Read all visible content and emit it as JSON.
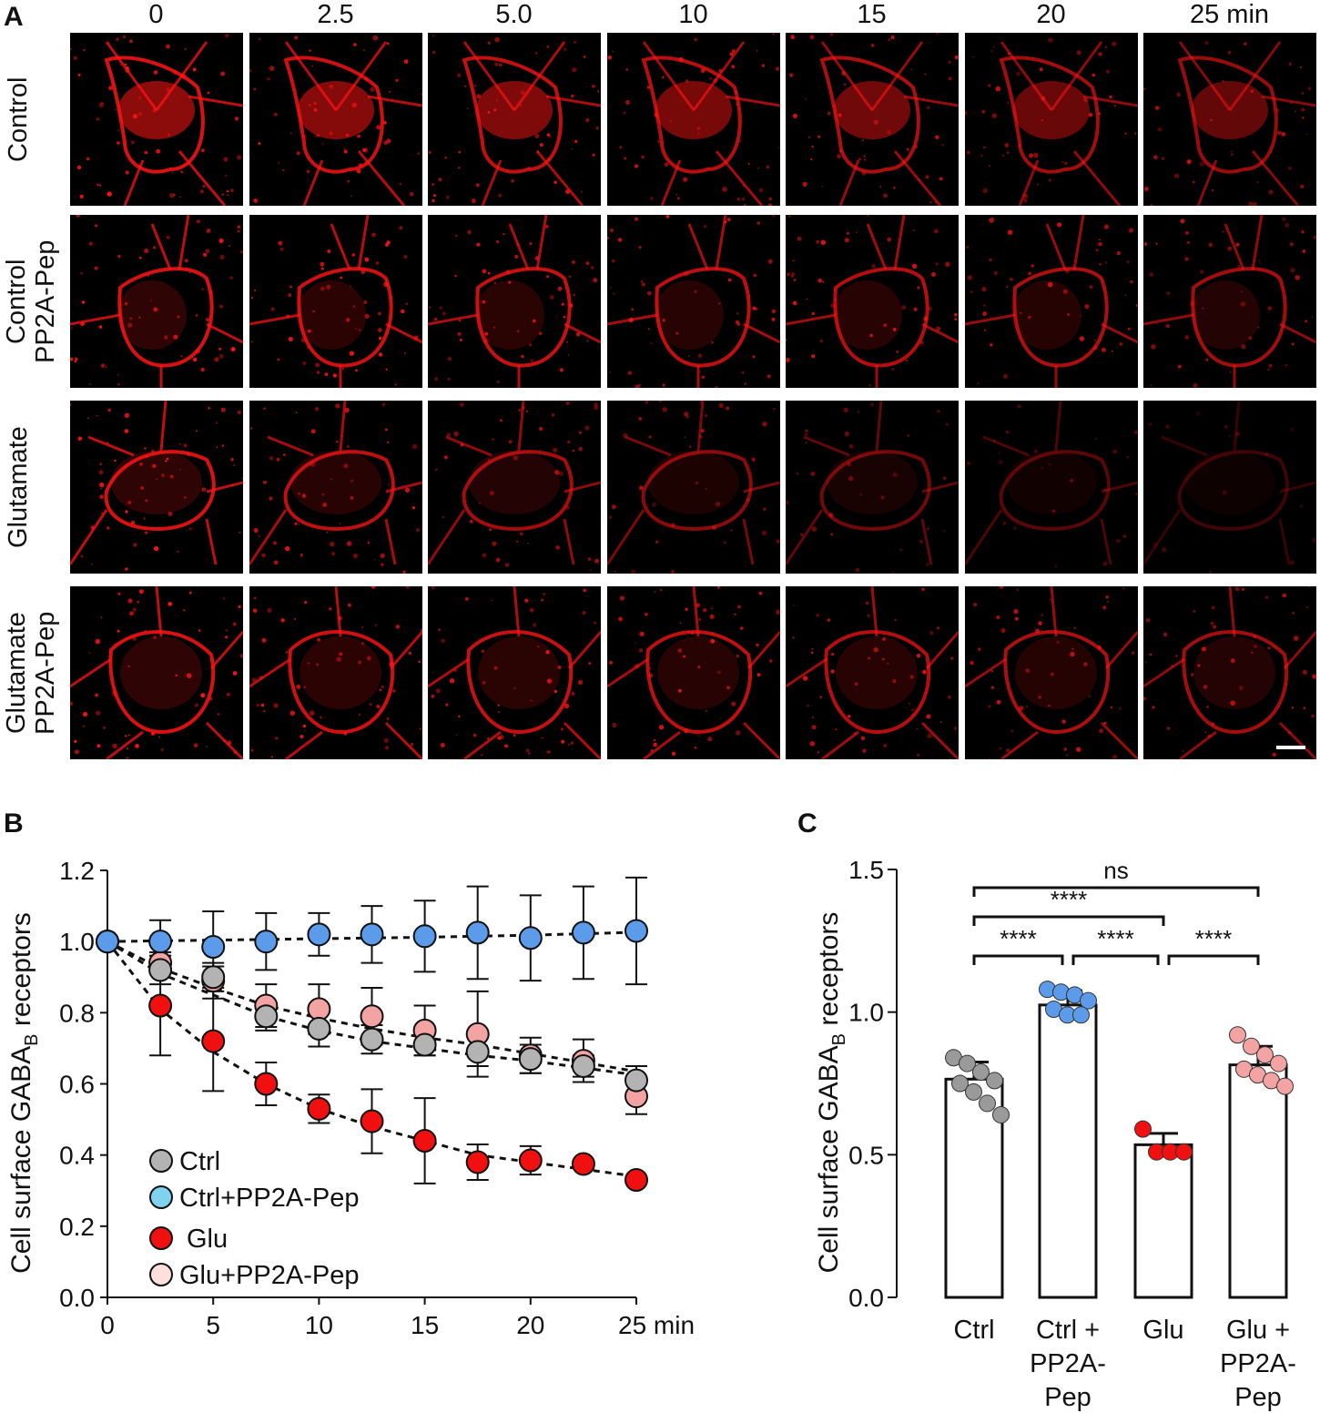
{
  "panel_a": {
    "letter": "A",
    "time_labels": [
      "0",
      "2.5",
      "5.0",
      "10",
      "15",
      "20",
      "25 min"
    ],
    "row_labels": [
      [
        "Control"
      ],
      [
        "Control",
        "PP2A-Pep"
      ],
      [
        "Glutamate"
      ],
      [
        "Glutamate",
        "PP2A-Pep"
      ]
    ],
    "image_color": "#ff1414",
    "scale_bar_color": "#ffffff"
  },
  "panel_b": {
    "letter": "B"
  },
  "panel_c": {
    "letter": "C"
  },
  "chart_data": [
    {
      "type": "scatter",
      "panel": "B",
      "ylabel_main": "Cell surface GABA",
      "ylabel_sub": "B",
      "ylabel_end": " receptors",
      "xlabel": "",
      "x_unit": "min",
      "xlim": [
        0,
        25
      ],
      "ylim": [
        0,
        1.2
      ],
      "xticks": [
        0,
        5,
        10,
        15,
        20,
        25
      ],
      "xtick_labels": [
        "0",
        "5",
        "10",
        "15",
        "20",
        "25 min"
      ],
      "yticks": [
        0.0,
        0.2,
        0.4,
        0.6,
        0.8,
        1.0,
        1.2
      ],
      "ytick_labels": [
        "0.0",
        "0.2",
        "0.4",
        "0.6",
        "0.8",
        "1.0",
        "1.2"
      ],
      "x": [
        0,
        2.5,
        5,
        7.5,
        10,
        12.5,
        15,
        17.5,
        20,
        22.5,
        25
      ],
      "fit_lines": "dashed",
      "legend_position": "bottom-left",
      "series": [
        {
          "name": "Ctrl",
          "color": "#b3b3b3",
          "values": [
            1.0,
            0.92,
            0.9,
            0.79,
            0.755,
            0.725,
            0.71,
            0.69,
            0.67,
            0.65,
            0.61
          ],
          "errors": [
            0,
            0.04,
            0.03,
            0.04,
            0.05,
            0.04,
            0.03,
            0.04,
            0.04,
            0.03,
            0.04
          ],
          "fit": [
            1.0,
            0.91,
            0.85,
            0.79,
            0.75,
            0.72,
            0.7,
            0.68,
            0.665,
            0.645,
            0.625
          ]
        },
        {
          "name": "Ctrl+PP2A-Pep",
          "color": "#5b9bea",
          "legend_color": "#7fd3f0",
          "values": [
            1.0,
            1.0,
            0.985,
            1.0,
            1.02,
            1.02,
            1.015,
            1.025,
            1.01,
            1.025,
            1.03
          ],
          "errors": [
            0,
            0.06,
            0.1,
            0.08,
            0.06,
            0.08,
            0.1,
            0.13,
            0.12,
            0.13,
            0.15
          ],
          "fit": [
            1.0,
            1.002,
            1.004,
            1.006,
            1.008,
            1.01,
            1.012,
            1.015,
            1.018,
            1.022,
            1.026
          ]
        },
        {
          "name": "Glu",
          "color": "#f01010",
          "values": [
            1.0,
            0.82,
            0.72,
            0.6,
            0.53,
            0.495,
            0.44,
            0.38,
            0.385,
            0.375,
            0.33
          ],
          "errors": [
            0,
            0.14,
            0.14,
            0.06,
            0.04,
            0.09,
            0.12,
            0.05,
            0.04,
            0.0,
            0.0
          ],
          "fit": [
            1.0,
            0.81,
            0.69,
            0.6,
            0.53,
            0.48,
            0.44,
            0.4,
            0.38,
            0.36,
            0.34
          ]
        },
        {
          "name": "Glu+PP2A-Pep",
          "color": "#f4a3a3",
          "legend_color": "#fde0dd",
          "values": [
            1.0,
            0.94,
            0.89,
            0.82,
            0.81,
            0.79,
            0.75,
            0.74,
            0.68,
            0.665,
            0.565
          ],
          "errors": [
            0,
            0.03,
            0.05,
            0.06,
            0.07,
            0.08,
            0.07,
            0.12,
            0.05,
            0.06,
            0.05
          ],
          "fit": [
            1.0,
            0.925,
            0.87,
            0.82,
            0.785,
            0.755,
            0.73,
            0.71,
            0.685,
            0.66,
            0.635
          ]
        }
      ]
    },
    {
      "type": "bar",
      "panel": "C",
      "ylabel_main": "Cell surface GABA",
      "ylabel_sub": "B",
      "ylabel_end": " receptors",
      "ylim": [
        0,
        1.5
      ],
      "yticks": [
        0.0,
        0.5,
        1.0,
        1.5
      ],
      "ytick_labels": [
        "0.0",
        "0.5",
        "1.0",
        "1.5"
      ],
      "categories": [
        [
          "Ctrl"
        ],
        [
          "Ctrl +",
          "PP2A-",
          "Pep"
        ],
        [
          "Glu"
        ],
        [
          "Glu +",
          "PP2A-",
          "Pep"
        ]
      ],
      "values": [
        0.765,
        1.025,
        0.535,
        0.815
      ],
      "errors": [
        0.06,
        0.05,
        0.04,
        0.065
      ],
      "point_colors": [
        "#9a9a9a",
        "#5b9bea",
        "#f01010",
        "#f4a3a3"
      ],
      "points": [
        [
          0.84,
          0.82,
          0.79,
          0.76,
          0.75,
          0.72,
          0.68,
          0.64
        ],
        [
          1.08,
          1.07,
          1.06,
          1.04,
          1.01,
          0.99,
          0.99
        ],
        [
          0.59,
          0.51,
          0.51,
          0.51
        ],
        [
          0.92,
          0.88,
          0.85,
          0.82,
          0.8,
          0.78,
          0.76,
          0.74
        ]
      ],
      "significance": [
        {
          "from": 0,
          "to": 3,
          "label": "ns",
          "level": 0
        },
        {
          "from": 0,
          "to": 2,
          "label": "****",
          "level": 1
        },
        {
          "from": 0,
          "to": 1,
          "label": "****",
          "level": 2
        },
        {
          "from": 1,
          "to": 2,
          "label": "****",
          "level": 2
        },
        {
          "from": 2,
          "to": 3,
          "label": "****",
          "level": 2
        }
      ]
    }
  ]
}
